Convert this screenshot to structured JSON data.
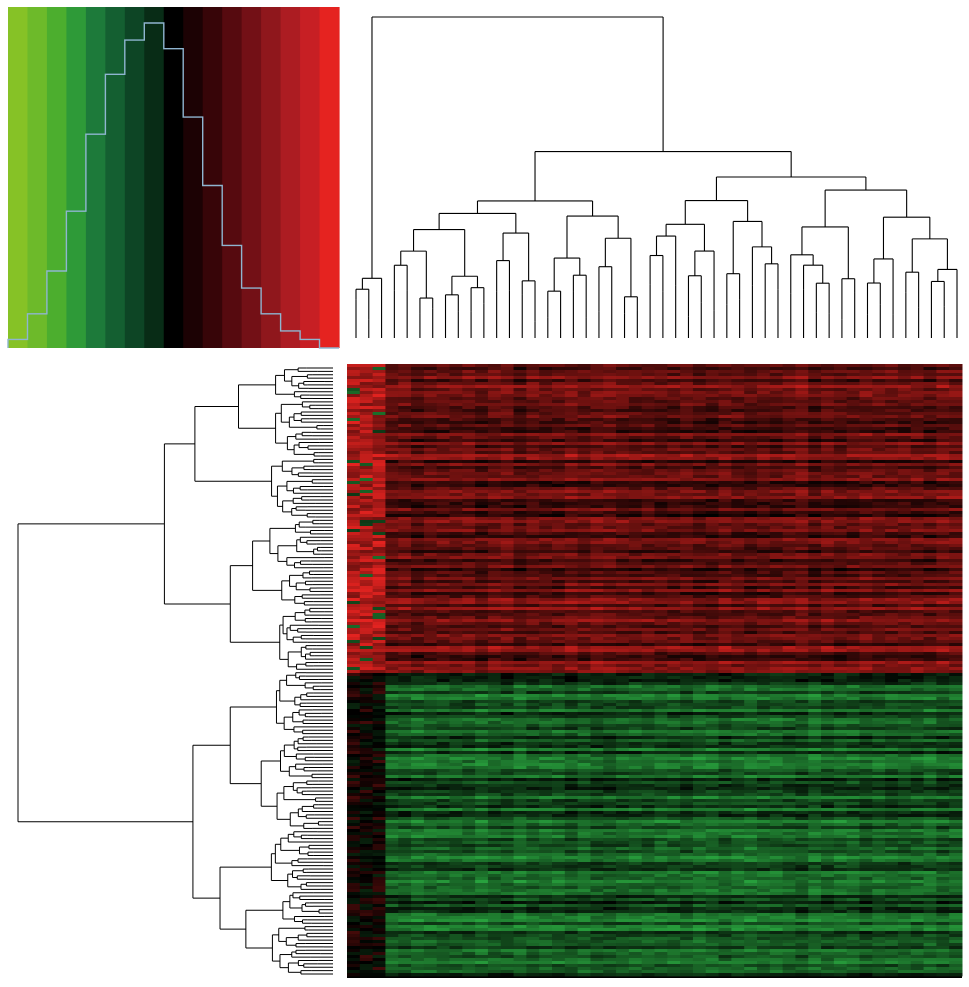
{
  "figure": {
    "title": ""
  },
  "chart_data": {
    "type": "heatmap",
    "title": "",
    "xlabel": "",
    "ylabel": "",
    "color_key": {
      "palette": [
        "#86c226",
        "#6dba2a",
        "#4cae2e",
        "#2e9a38",
        "#1d7a3a",
        "#145f31",
        "#0d4525",
        "#082c16",
        "#000000",
        "#1c0204",
        "#370508",
        "#560a0f",
        "#731016",
        "#8f171c",
        "#ac1c22",
        "#c71f24",
        "#e52320"
      ],
      "histogram_counts": [
        1,
        4,
        9,
        16,
        25,
        32,
        36,
        38,
        35,
        27,
        19,
        12,
        7,
        4,
        2,
        1,
        0
      ],
      "histogram_line_color": "#8fb5d0"
    },
    "colors": {
      "low": "#2fbd48",
      "mid": "#000000",
      "high": "#e52320"
    },
    "n_columns": 48,
    "column_dendrogram": {
      "n_leaves": 48,
      "top_split": [
        3,
        45
      ],
      "clusters_main": [
        2,
        43
      ]
    },
    "row_clusters": [
      {
        "name": "",
        "direction": "up",
        "share": 0.18
      },
      {
        "name": "",
        "direction": "up",
        "share": 0.19
      },
      {
        "name": "",
        "direction": "up",
        "share": 0.13
      },
      {
        "name": "",
        "direction": "down",
        "share": 0.16
      },
      {
        "name": "",
        "direction": "down",
        "share": 0.11
      },
      {
        "name": "",
        "direction": "down",
        "share": 0.12
      },
      {
        "name": "",
        "direction": "down",
        "share": 0.11
      }
    ],
    "first_column_group": {
      "columns": 3,
      "pattern": "opposite"
    },
    "grid": false,
    "legend": "top-left"
  }
}
